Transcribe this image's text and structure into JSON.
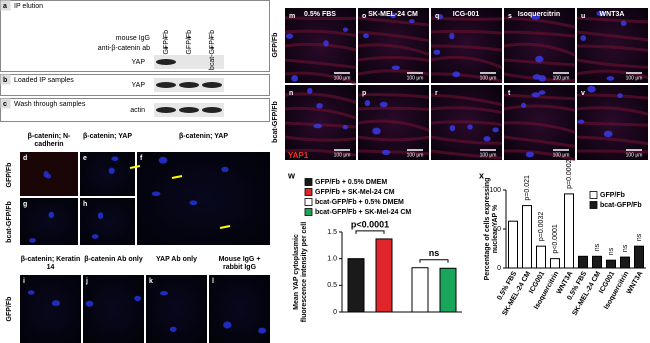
{
  "blots": [
    {
      "letter": "a",
      "title": "IP elution",
      "columns": [
        "GFP/Fb",
        "GFP/Fb",
        "bcat-GFP/Fb"
      ],
      "rows": [
        {
          "label": "mouse IgG",
          "cells": [
            "-",
            "+",
            "-"
          ]
        },
        {
          "label": "anti-β-catenin ab",
          "cells": [
            "+",
            "-",
            "+"
          ]
        }
      ],
      "band": "YAP"
    },
    {
      "letter": "b",
      "title": "Loaded IP samples",
      "band": "YAP"
    },
    {
      "letter": "c",
      "title": "Wash through samples",
      "band": "actin"
    }
  ],
  "micrographs_left": {
    "row_labels": [
      "GFP/Fb",
      "bcat-GFP/Fb",
      "GFP/Fb"
    ],
    "panels": [
      {
        "letter": "d",
        "caption": "β-catenin; N-cadherin"
      },
      {
        "letter": "e",
        "caption": "β-catenin; YAP"
      },
      {
        "letter": "f",
        "caption": "β-catenin; YAP"
      },
      {
        "letter": "g"
      },
      {
        "letter": "h"
      },
      {
        "letter": "i",
        "caption": "β-catenin; Keratin 14"
      },
      {
        "letter": "j",
        "caption": "β-catenin Ab only"
      },
      {
        "letter": "k",
        "caption": "YAP Ab only"
      },
      {
        "letter": "l",
        "caption": "Mouse IgG + rabbit IgG"
      }
    ]
  },
  "micrographs_right": {
    "columns": [
      "0.5% FBS",
      "SK-MEL-24 CM",
      "ICG-001",
      "Isoquercitrin",
      "WNT3A"
    ],
    "row_labels": [
      "GFP/Fb",
      "bcat-GFP/Fb"
    ],
    "letters": [
      [
        "m",
        "o",
        "q",
        "s",
        "u"
      ],
      [
        "n",
        "p",
        "r",
        "t",
        "v"
      ]
    ],
    "scale_bar": "100 μm",
    "stain": "YAP1"
  },
  "chart_data": [
    {
      "type": "bar",
      "letter": "w",
      "ylabel": "Mean YAP cytoplasmic fluorescence intensity per cell",
      "categories": [
        null
      ],
      "series": [
        {
          "name": "GFP/Fb + 0.5% DMEM",
          "color": "#1a1a1a",
          "values": [
            1.0
          ]
        },
        {
          "name": "GFP/Fb + SK-Mel-24 CM",
          "color": "#e0252b",
          "values": [
            1.37
          ]
        },
        {
          "name": "bcat-GFP/Fb + 0.5% DMEM",
          "color": "#ffffff",
          "values": [
            0.83
          ]
        },
        {
          "name": "bcat-GFP/Fb + SK-Mel-24 CM",
          "color": "#1aa65a",
          "values": [
            0.82
          ]
        }
      ],
      "ylim": [
        0,
        1.5
      ],
      "yticks": [
        0,
        0.5,
        {
          "value": 1,
          "label": "1.0"
        },
        1.5
      ],
      "annotations": [
        {
          "text": "p<0.0001",
          "series": [
            0,
            1
          ]
        },
        {
          "text": "ns",
          "series": [
            2,
            3
          ]
        }
      ]
    },
    {
      "type": "bar",
      "letter": "x",
      "ylabel": "Percentage of cells expressing nuclear YAP %",
      "categories": [
        "0.5% FBS",
        "SK-MEL-24 CM",
        "ICG001",
        "Isoquercitrin",
        "WNT3A",
        "0.5% FBS",
        "SK-MEL-24 CM",
        "ICG001",
        "Isoquercitrin",
        "WNT3A"
      ],
      "series": [
        {
          "name": "GFP/Fb",
          "color": "#ffffff",
          "values": [
            60,
            80,
            28,
            12,
            95,
            null,
            null,
            null,
            null,
            null
          ]
        },
        {
          "name": "bcat-GFP/Fb",
          "color": "#1a1a1a",
          "values": [
            null,
            null,
            null,
            null,
            null,
            15,
            15,
            10,
            14,
            28
          ]
        }
      ],
      "ylim": [
        0,
        100
      ],
      "yticks": [
        0,
        50,
        100
      ],
      "annotations": [
        {
          "category": 1,
          "text": "p=0.021"
        },
        {
          "category": 2,
          "text": "p=0.0032"
        },
        {
          "category": 3,
          "text": "p<0.0001"
        },
        {
          "category": 4,
          "text": "p=0.0002"
        },
        {
          "category": 6,
          "text": "ns"
        },
        {
          "category": 7,
          "text": "ns"
        },
        {
          "category": 8,
          "text": "ns"
        },
        {
          "category": 9,
          "text": "ns"
        }
      ]
    }
  ]
}
